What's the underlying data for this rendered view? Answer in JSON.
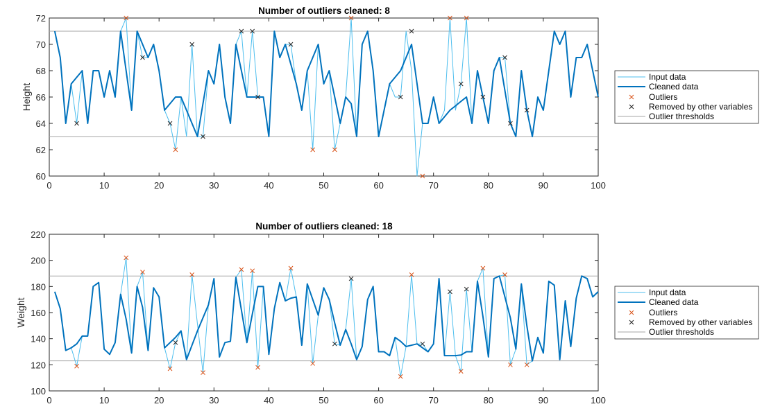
{
  "colors": {
    "input": "#4DBEEE",
    "cleaned": "#0072BD",
    "outlier": "#D95319",
    "removed": "#262626",
    "threshold": "#A6A6A6",
    "axis": "#262626"
  },
  "chart_data": [
    {
      "type": "line",
      "title": "Number of outliers cleaned: 8",
      "xlabel": "",
      "ylabel": "Height",
      "xlim": [
        0,
        100
      ],
      "ylim": [
        60,
        72
      ],
      "xticks": [
        "0",
        "10",
        "20",
        "30",
        "40",
        "50",
        "60",
        "70",
        "80",
        "90",
        "100"
      ],
      "yticks": [
        "60",
        "62",
        "64",
        "66",
        "68",
        "70",
        "72"
      ],
      "grid": false,
      "legend_position": "right",
      "legend": [
        "Input data",
        "Cleaned data",
        "Outliers",
        "Removed by other variables",
        "Outlier thresholds"
      ],
      "thresholds": [
        63,
        71
      ],
      "input": [
        71,
        69,
        64,
        67,
        64,
        68,
        64,
        68,
        68,
        66,
        68,
        66,
        71,
        72,
        65,
        71,
        69,
        69,
        70,
        68,
        65,
        64,
        62,
        66,
        63,
        70,
        63,
        63,
        68,
        67,
        70,
        66,
        64,
        70,
        71,
        66,
        71,
        66,
        66,
        63,
        71,
        69,
        70,
        70,
        67,
        65,
        68,
        62,
        70,
        67,
        68,
        62,
        64,
        66,
        72,
        63,
        70,
        71,
        68,
        63,
        65,
        67,
        66,
        66,
        71,
        68,
        60,
        64,
        64,
        66,
        64,
        65,
        72,
        65,
        67,
        72,
        64,
        68,
        66,
        64,
        68,
        69,
        69,
        64,
        63,
        68,
        65,
        63,
        66,
        65,
        68,
        71,
        70,
        71,
        66,
        69,
        69,
        70,
        68,
        66
      ],
      "cleaned": [
        71,
        69,
        64,
        67,
        67.5,
        68,
        64,
        68,
        68,
        66,
        68,
        66,
        71,
        68,
        65,
        71,
        70,
        69,
        70,
        68,
        65,
        65.5,
        66,
        66,
        65,
        64,
        63,
        65.5,
        68,
        67,
        70,
        66,
        64,
        70,
        68,
        66,
        66,
        66,
        66,
        63,
        71,
        69,
        70,
        68.5,
        67,
        65,
        68,
        69,
        70,
        67,
        68,
        66,
        64,
        66,
        65.5,
        63,
        70,
        71,
        68,
        63,
        65,
        67,
        67.5,
        68,
        69,
        70,
        67,
        64,
        64,
        66,
        64,
        64.5,
        65,
        65.33,
        65.67,
        66,
        64,
        68,
        66,
        64,
        68,
        69,
        66.5,
        64,
        63,
        68,
        65,
        63,
        66,
        65,
        68,
        71,
        70,
        71,
        66,
        69,
        69,
        70,
        68,
        66
      ],
      "outliers": [
        [
          14,
          72
        ],
        [
          23,
          62
        ],
        [
          48,
          62
        ],
        [
          52,
          62
        ],
        [
          55,
          72
        ],
        [
          68,
          60
        ],
        [
          73,
          72
        ],
        [
          76,
          72
        ]
      ],
      "removed": [
        [
          5,
          64
        ],
        [
          17,
          69
        ],
        [
          22,
          64
        ],
        [
          26,
          70
        ],
        [
          28,
          63
        ],
        [
          35,
          71
        ],
        [
          37,
          71
        ],
        [
          38,
          66
        ],
        [
          44,
          70
        ],
        [
          64,
          66
        ],
        [
          66,
          71
        ],
        [
          75,
          67
        ],
        [
          79,
          66
        ],
        [
          83,
          69
        ],
        [
          84,
          64
        ],
        [
          87,
          65
        ]
      ]
    },
    {
      "type": "line",
      "title": "Number of outliers cleaned: 18",
      "xlabel": "",
      "ylabel": "Weight",
      "xlim": [
        0,
        100
      ],
      "ylim": [
        100,
        220
      ],
      "xticks": [
        "0",
        "10",
        "20",
        "30",
        "40",
        "50",
        "60",
        "70",
        "80",
        "90",
        "100"
      ],
      "yticks": [
        "100",
        "120",
        "140",
        "160",
        "180",
        "200",
        "220"
      ],
      "grid": false,
      "legend_position": "right",
      "legend": [
        "Input data",
        "Cleaned data",
        "Outliers",
        "Removed by other variables",
        "Outlier thresholds"
      ],
      "thresholds": [
        123,
        188
      ],
      "input": [
        176,
        163,
        131,
        133,
        119,
        142,
        142,
        180,
        183,
        132,
        128,
        137,
        174,
        202,
        129,
        180,
        191,
        131,
        179,
        172,
        133,
        117,
        137,
        146,
        124,
        189,
        151,
        114,
        166,
        186,
        126,
        137,
        138,
        187,
        193,
        137,
        192,
        118,
        180,
        128,
        163,
        183,
        169,
        194,
        172,
        135,
        182,
        121,
        158,
        179,
        170,
        136,
        135,
        147,
        186,
        124,
        134,
        170,
        180,
        130,
        130,
        127,
        141,
        111,
        134,
        189,
        136,
        136,
        130,
        136,
        186,
        127,
        176,
        127,
        115,
        178,
        130,
        184,
        194,
        126,
        186,
        188,
        189,
        120,
        132,
        182,
        120,
        123,
        141,
        129,
        184,
        181,
        124,
        169,
        134,
        171,
        188,
        186,
        172,
        176
      ],
      "cleaned": [
        176,
        163,
        131,
        133,
        136,
        142,
        142,
        180,
        183,
        132,
        128,
        137,
        174,
        155,
        129,
        180,
        164,
        131,
        179,
        172,
        133,
        137,
        141,
        146,
        124,
        135,
        146,
        156,
        166,
        186,
        126,
        137,
        138,
        187,
        162,
        137,
        159,
        180,
        180,
        128,
        163,
        183,
        169,
        171,
        172,
        135,
        182,
        170,
        158,
        179,
        170,
        152,
        135,
        147,
        136,
        124,
        134,
        170,
        180,
        130,
        130,
        127,
        141,
        138,
        134,
        135,
        136,
        133,
        130,
        136,
        186,
        127,
        127,
        127,
        127.5,
        130,
        130,
        184,
        157,
        126,
        186,
        188,
        172,
        156,
        132,
        182,
        150,
        123,
        141,
        129,
        184,
        181,
        124,
        169,
        134,
        171,
        188,
        186,
        172,
        176
      ],
      "outliers": [
        [
          5,
          119
        ],
        [
          14,
          202
        ],
        [
          17,
          191
        ],
        [
          22,
          117
        ],
        [
          26,
          189
        ],
        [
          28,
          114
        ],
        [
          35,
          193
        ],
        [
          37,
          192
        ],
        [
          38,
          118
        ],
        [
          44,
          194
        ],
        [
          48,
          121
        ],
        [
          64,
          111
        ],
        [
          66,
          189
        ],
        [
          75,
          115
        ],
        [
          79,
          194
        ],
        [
          83,
          189
        ],
        [
          84,
          120
        ],
        [
          87,
          120
        ]
      ],
      "removed": [
        [
          23,
          137
        ],
        [
          52,
          136
        ],
        [
          55,
          186
        ],
        [
          68,
          136
        ],
        [
          73,
          176
        ],
        [
          76,
          178
        ]
      ]
    }
  ]
}
